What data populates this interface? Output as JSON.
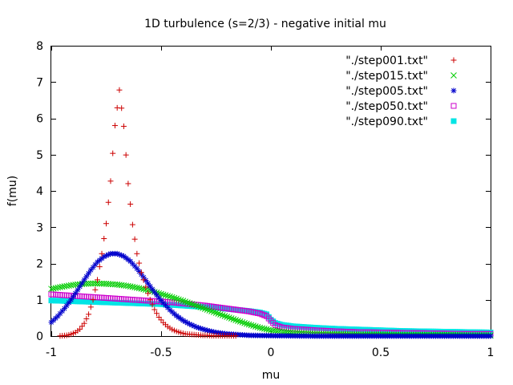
{
  "chart_data": {
    "type": "scatter",
    "title": "1D turbulence (s=2/3) - negative initial mu",
    "xlabel": "mu",
    "ylabel": "f(mu)",
    "xlim": [
      -1,
      1
    ],
    "ylim": [
      0,
      8
    ],
    "x_ticks": [
      "-1",
      "-0.5",
      "0",
      "0.5",
      "1"
    ],
    "y_ticks": [
      "0",
      "1",
      "2",
      "3",
      "4",
      "5",
      "6",
      "7",
      "8"
    ],
    "grid": false,
    "legend_position": "top-right",
    "series": [
      {
        "name": "\"./step001.txt\"",
        "color": "#cc0000",
        "marker": "plus",
        "points": [
          [
            -0.99,
            0.0
          ],
          [
            -0.97,
            0.0
          ],
          [
            -0.95,
            0.01
          ],
          [
            -0.93,
            0.02
          ],
          [
            -0.91,
            0.05
          ],
          [
            -0.89,
            0.1
          ],
          [
            -0.87,
            0.19
          ],
          [
            -0.85,
            0.35
          ],
          [
            -0.83,
            0.6
          ],
          [
            -0.81,
            1.0
          ],
          [
            -0.79,
            1.55
          ],
          [
            -0.77,
            2.27
          ],
          [
            -0.75,
            3.1
          ],
          [
            -0.73,
            4.27
          ],
          [
            -0.71,
            5.8
          ],
          [
            -0.69,
            6.78
          ],
          [
            -0.67,
            5.78
          ],
          [
            -0.65,
            4.2
          ],
          [
            -0.63,
            3.07
          ],
          [
            -0.61,
            2.27
          ],
          [
            -0.59,
            1.75
          ],
          [
            -0.57,
            1.35
          ],
          [
            -0.55,
            1.0
          ],
          [
            -0.53,
            0.73
          ],
          [
            -0.51,
            0.52
          ],
          [
            -0.49,
            0.37
          ],
          [
            -0.47,
            0.26
          ],
          [
            -0.45,
            0.18
          ],
          [
            -0.43,
            0.13
          ],
          [
            -0.41,
            0.09
          ],
          [
            -0.39,
            0.06
          ],
          [
            -0.37,
            0.05
          ],
          [
            -0.35,
            0.04
          ],
          [
            -0.33,
            0.03
          ],
          [
            -0.31,
            0.02
          ],
          [
            -0.29,
            0.02
          ],
          [
            -0.27,
            0.01
          ],
          [
            -0.25,
            0.01
          ],
          [
            -0.2,
            0.01
          ],
          [
            -0.1,
            0.0
          ],
          [
            0.0,
            0.0
          ],
          [
            0.2,
            0.0
          ],
          [
            0.4,
            0.0
          ],
          [
            0.6,
            0.0
          ],
          [
            0.8,
            0.0
          ],
          [
            1.0,
            0.0
          ]
        ]
      },
      {
        "name": "\"./step015.txt\"",
        "color": "#00cc00",
        "marker": "cross",
        "points": [
          [
            -1.0,
            1.3
          ],
          [
            -0.95,
            1.36
          ],
          [
            -0.9,
            1.41
          ],
          [
            -0.85,
            1.44
          ],
          [
            -0.8,
            1.45
          ],
          [
            -0.75,
            1.44
          ],
          [
            -0.7,
            1.42
          ],
          [
            -0.65,
            1.38
          ],
          [
            -0.6,
            1.32
          ],
          [
            -0.55,
            1.25
          ],
          [
            -0.5,
            1.16
          ],
          [
            -0.45,
            1.07
          ],
          [
            -0.4,
            0.97
          ],
          [
            -0.35,
            0.86
          ],
          [
            -0.3,
            0.75
          ],
          [
            -0.25,
            0.64
          ],
          [
            -0.2,
            0.53
          ],
          [
            -0.15,
            0.42
          ],
          [
            -0.1,
            0.32
          ],
          [
            -0.05,
            0.23
          ],
          [
            0.0,
            0.16
          ],
          [
            0.05,
            0.12
          ],
          [
            0.1,
            0.09
          ],
          [
            0.2,
            0.06
          ],
          [
            0.3,
            0.05
          ],
          [
            0.4,
            0.04
          ],
          [
            0.5,
            0.04
          ],
          [
            0.6,
            0.03
          ],
          [
            0.7,
            0.03
          ],
          [
            0.8,
            0.03
          ],
          [
            0.9,
            0.02
          ],
          [
            1.0,
            0.02
          ]
        ]
      },
      {
        "name": "\"./step005.txt\"",
        "color": "#0000cc",
        "marker": "star",
        "points": [
          [
            -1.0,
            0.38
          ],
          [
            -0.97,
            0.55
          ],
          [
            -0.94,
            0.76
          ],
          [
            -0.91,
            1.0
          ],
          [
            -0.88,
            1.27
          ],
          [
            -0.85,
            1.55
          ],
          [
            -0.82,
            1.82
          ],
          [
            -0.79,
            2.04
          ],
          [
            -0.76,
            2.19
          ],
          [
            -0.73,
            2.27
          ],
          [
            -0.7,
            2.27
          ],
          [
            -0.67,
            2.2
          ],
          [
            -0.64,
            2.06
          ],
          [
            -0.61,
            1.86
          ],
          [
            -0.58,
            1.62
          ],
          [
            -0.55,
            1.37
          ],
          [
            -0.52,
            1.13
          ],
          [
            -0.49,
            0.91
          ],
          [
            -0.46,
            0.72
          ],
          [
            -0.43,
            0.56
          ],
          [
            -0.4,
            0.43
          ],
          [
            -0.37,
            0.33
          ],
          [
            -0.34,
            0.25
          ],
          [
            -0.31,
            0.19
          ],
          [
            -0.28,
            0.14
          ],
          [
            -0.25,
            0.1
          ],
          [
            -0.2,
            0.06
          ],
          [
            -0.15,
            0.04
          ],
          [
            -0.1,
            0.02
          ],
          [
            0.0,
            0.01
          ],
          [
            0.2,
            0.0
          ],
          [
            0.4,
            0.0
          ],
          [
            0.6,
            0.0
          ],
          [
            0.8,
            0.0
          ],
          [
            1.0,
            0.0
          ]
        ]
      },
      {
        "name": "\"./step050.txt\"",
        "color": "#cc00cc",
        "marker": "square",
        "points": [
          [
            -1.0,
            1.15
          ],
          [
            -0.95,
            1.13
          ],
          [
            -0.9,
            1.11
          ],
          [
            -0.85,
            1.09
          ],
          [
            -0.8,
            1.07
          ],
          [
            -0.75,
            1.05
          ],
          [
            -0.7,
            1.03
          ],
          [
            -0.65,
            1.01
          ],
          [
            -0.6,
            0.99
          ],
          [
            -0.55,
            0.97
          ],
          [
            -0.5,
            0.95
          ],
          [
            -0.45,
            0.93
          ],
          [
            -0.4,
            0.9
          ],
          [
            -0.35,
            0.87
          ],
          [
            -0.3,
            0.84
          ],
          [
            -0.25,
            0.8
          ],
          [
            -0.2,
            0.76
          ],
          [
            -0.15,
            0.72
          ],
          [
            -0.1,
            0.68
          ],
          [
            -0.05,
            0.62
          ],
          [
            -0.02,
            0.55
          ],
          [
            0.0,
            0.42
          ],
          [
            0.02,
            0.3
          ],
          [
            0.05,
            0.24
          ],
          [
            0.1,
            0.2
          ],
          [
            0.2,
            0.16
          ],
          [
            0.3,
            0.13
          ],
          [
            0.4,
            0.11
          ],
          [
            0.5,
            0.1
          ],
          [
            0.6,
            0.09
          ],
          [
            0.7,
            0.08
          ],
          [
            0.8,
            0.07
          ],
          [
            0.9,
            0.06
          ],
          [
            1.0,
            0.06
          ]
        ]
      },
      {
        "name": "\"./step090.txt\"",
        "color": "#00e5e5",
        "marker": "filled-square",
        "points": [
          [
            -1.0,
            0.98
          ],
          [
            -0.95,
            0.97
          ],
          [
            -0.9,
            0.96
          ],
          [
            -0.85,
            0.95
          ],
          [
            -0.8,
            0.94
          ],
          [
            -0.75,
            0.93
          ],
          [
            -0.7,
            0.92
          ],
          [
            -0.65,
            0.91
          ],
          [
            -0.6,
            0.9
          ],
          [
            -0.55,
            0.89
          ],
          [
            -0.5,
            0.88
          ],
          [
            -0.45,
            0.86
          ],
          [
            -0.4,
            0.84
          ],
          [
            -0.35,
            0.82
          ],
          [
            -0.3,
            0.8
          ],
          [
            -0.25,
            0.78
          ],
          [
            -0.2,
            0.75
          ],
          [
            -0.15,
            0.72
          ],
          [
            -0.1,
            0.69
          ],
          [
            -0.05,
            0.65
          ],
          [
            -0.02,
            0.6
          ],
          [
            0.0,
            0.45
          ],
          [
            0.02,
            0.36
          ],
          [
            0.05,
            0.31
          ],
          [
            0.1,
            0.27
          ],
          [
            0.2,
            0.23
          ],
          [
            0.3,
            0.2
          ],
          [
            0.4,
            0.18
          ],
          [
            0.5,
            0.16
          ],
          [
            0.6,
            0.14
          ],
          [
            0.7,
            0.13
          ],
          [
            0.8,
            0.12
          ],
          [
            0.9,
            0.11
          ],
          [
            1.0,
            0.1
          ]
        ]
      }
    ]
  }
}
